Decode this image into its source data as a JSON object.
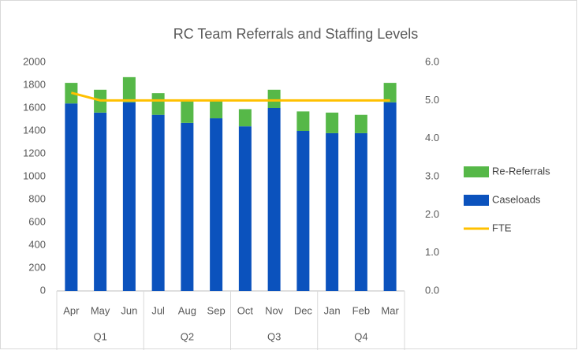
{
  "chart_data": {
    "type": "bar",
    "stacked": true,
    "title": "RC Team Referrals and Staffing Levels",
    "categories": [
      "Apr",
      "May",
      "Jun",
      "Jul",
      "Aug",
      "Sep",
      "Oct",
      "Nov",
      "Dec",
      "Jan",
      "Feb",
      "Mar"
    ],
    "groups": [
      "Q1",
      "Q2",
      "Q3",
      "Q4"
    ],
    "series": [
      {
        "name": "Caseloads",
        "color": "#0b52bd",
        "values": [
          1640,
          1560,
          1650,
          1540,
          1470,
          1510,
          1440,
          1600,
          1400,
          1380,
          1380,
          1650
        ]
      },
      {
        "name": "Re-Referrals",
        "color": "#56b848",
        "values": [
          180,
          200,
          220,
          190,
          190,
          150,
          150,
          160,
          170,
          180,
          160,
          170
        ]
      },
      {
        "name": "FTE",
        "type": "line",
        "axis": "y2",
        "color": "#ffc000",
        "values": [
          5.2,
          5.0,
          5.0,
          5.0,
          5.0,
          5.0,
          5.0,
          5.0,
          5.0,
          5.0,
          5.0,
          5.0
        ]
      }
    ],
    "ylim": [
      0,
      2000
    ],
    "yticks": [
      0,
      200,
      400,
      600,
      800,
      1000,
      1200,
      1400,
      1600,
      1800,
      2000
    ],
    "y2lim": [
      0,
      6
    ],
    "y2ticks": [
      {
        "value": 0,
        "label": "0.0"
      },
      {
        "value": 1,
        "label": "1.0"
      },
      {
        "value": 2,
        "label": "2.0"
      },
      {
        "value": 3,
        "label": "3.0"
      },
      {
        "value": 4,
        "label": "4.0"
      },
      {
        "value": 5,
        "label": "5.0"
      },
      {
        "value": 6,
        "label": "6.0"
      }
    ],
    "grid": false,
    "legend": "right"
  }
}
